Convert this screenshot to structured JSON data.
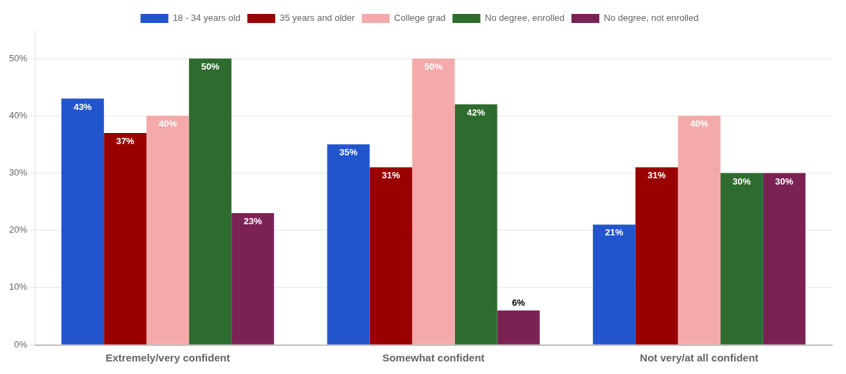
{
  "chart_data": {
    "type": "bar",
    "categories": [
      "Extremely/very confident",
      "Somewhat confident",
      "Not very/at all confident"
    ],
    "series": [
      {
        "name": "18 - 34 years old",
        "color": "#2255CC",
        "values": [
          43,
          35,
          21
        ],
        "value_labels": [
          "43%",
          "35%",
          "21%"
        ]
      },
      {
        "name": "35 years and older",
        "color": "#990000",
        "values": [
          37,
          31,
          31
        ],
        "value_labels": [
          "37%",
          "31%",
          "31%"
        ]
      },
      {
        "name": "College grad",
        "color": "#F4AAAA",
        "values": [
          40,
          50,
          40
        ],
        "value_labels": [
          "40%",
          "50%",
          "40%"
        ]
      },
      {
        "name": "No degree, enrolled",
        "color": "#2E6B2E",
        "values": [
          50,
          42,
          30
        ],
        "value_labels": [
          "50%",
          "42%",
          "30%"
        ]
      },
      {
        "name": "No degree, not enrolled",
        "color": "#7B2255",
        "values": [
          23,
          6,
          30
        ],
        "value_labels": [
          "23%",
          "6%",
          "30%"
        ]
      }
    ],
    "ylim": [
      0,
      55
    ],
    "yticks": [
      {
        "value": 0,
        "label": "0%"
      },
      {
        "value": 10,
        "label": "10%"
      },
      {
        "value": 20,
        "label": "20%"
      },
      {
        "value": 30,
        "label": "30%"
      },
      {
        "value": 40,
        "label": "40%"
      },
      {
        "value": 50,
        "label": "50%"
      }
    ],
    "grid": true,
    "legend": "top",
    "data_labels": true
  }
}
